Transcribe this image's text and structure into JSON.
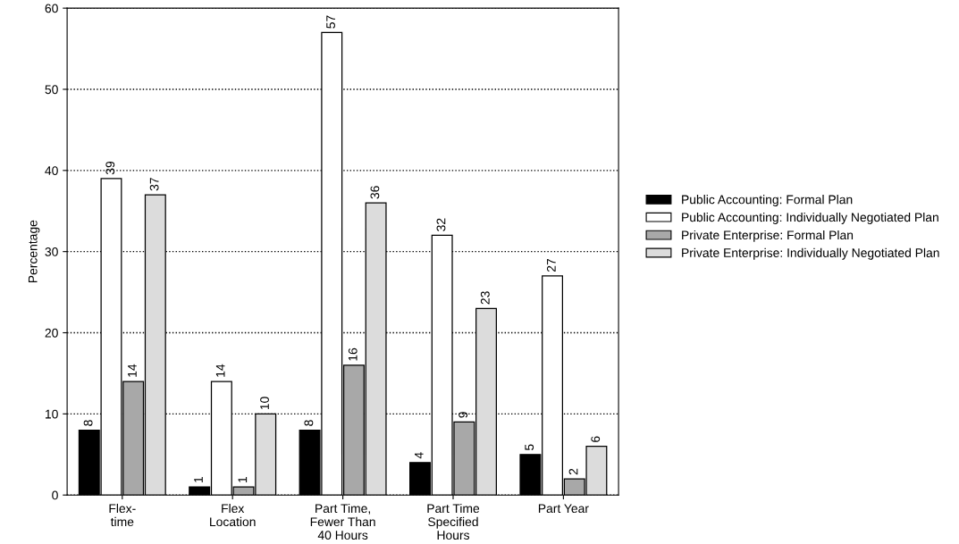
{
  "chart_data": {
    "type": "bar",
    "ylabel": "Percentage",
    "categories": [
      "Flex-\ntime",
      "Flex\nLocation",
      "Part Time,\nFewer Than\n40 Hours",
      "Part Time\nSpecified\nHours",
      "Part Year"
    ],
    "series": [
      {
        "name": "Public Accounting: Formal Plan",
        "color": "#000000",
        "values": [
          8,
          1,
          8,
          4,
          5
        ]
      },
      {
        "name": "Public Accounting: Individually Negotiated Plan",
        "color": "#ffffff",
        "values": [
          39,
          14,
          57,
          32,
          27
        ]
      },
      {
        "name": "Private Enterprise: Formal Plan",
        "color": "#a8a8a8",
        "values": [
          14,
          1,
          16,
          9,
          2
        ]
      },
      {
        "name": "Private Enterprise: Individually Negotiated Plan",
        "color": "#dcdcdc",
        "values": [
          37,
          10,
          36,
          23,
          6
        ]
      }
    ],
    "ylim": [
      0,
      60
    ],
    "yticks": [
      0,
      10,
      20,
      30,
      40,
      50,
      60
    ],
    "grid": "y",
    "legend": "right",
    "data_labels": true
  }
}
